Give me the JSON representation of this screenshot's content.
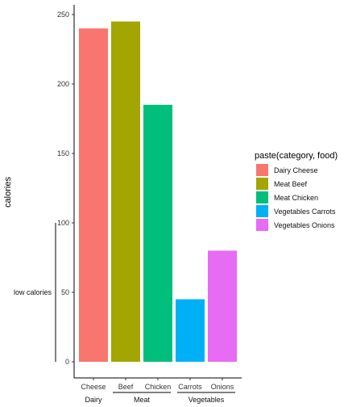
{
  "chart_data": {
    "type": "bar",
    "categories": [
      "Cheese",
      "Beef",
      "Chicken",
      "Carrots",
      "Onions"
    ],
    "values": [
      240,
      245,
      185,
      45,
      80
    ],
    "groups": [
      {
        "name": "Dairy",
        "members": [
          "Cheese"
        ]
      },
      {
        "name": "Meat",
        "members": [
          "Beef",
          "Chicken"
        ]
      },
      {
        "name": "Vegetables",
        "members": [
          "Carrots",
          "Onions"
        ]
      }
    ],
    "colors": [
      "#F8766D",
      "#A3A500",
      "#00BF7D",
      "#00B0F6",
      "#E76BF3"
    ],
    "ylabel": "calories",
    "xlabel": "",
    "ylim": [
      -10,
      255
    ],
    "yticks": [
      0,
      50,
      100,
      150,
      200,
      250
    ],
    "grid": false,
    "legend": {
      "title": "paste(category, food)",
      "placement": "right",
      "entries": [
        "Dairy Cheese",
        "Meat Beef",
        "Meat Chicken",
        "Vegetables Carrots",
        "Vegetables Onions"
      ]
    },
    "annotation": {
      "label": "low calories",
      "range": [
        0,
        100
      ]
    }
  }
}
